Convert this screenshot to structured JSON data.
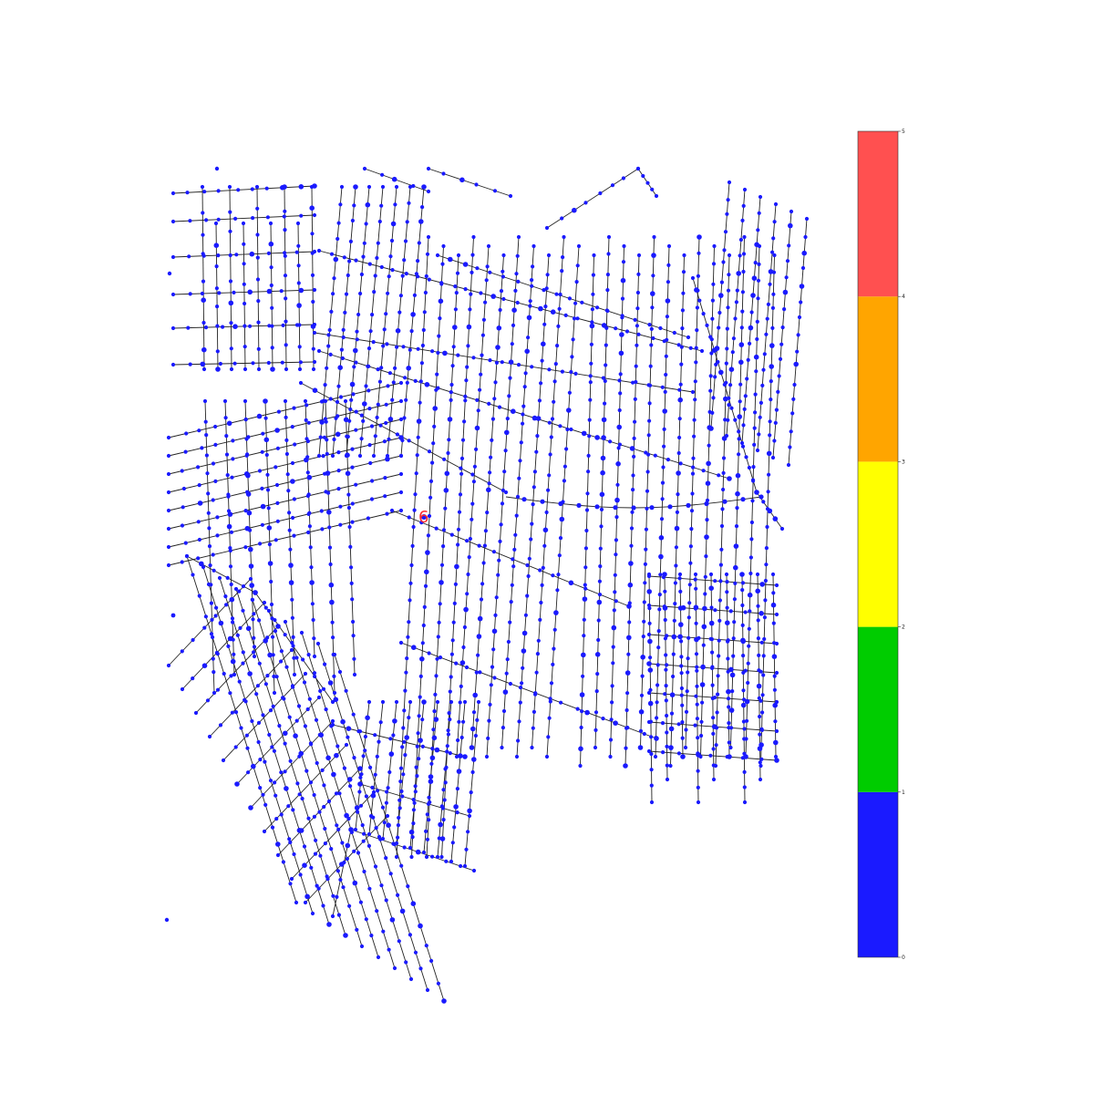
{
  "map": {
    "edge_color": "#222222",
    "node_color": "#1a1aff",
    "highlight_color": "#ff2a2a",
    "highlight_label": "6",
    "description_layers": [
      "street-network"
    ]
  },
  "colorbar": {
    "ticks": [
      "0",
      "1",
      "2",
      "3",
      "4",
      "5"
    ],
    "bands": [
      {
        "value_from": 0,
        "value_to": 1,
        "color": "#1a1aff"
      },
      {
        "value_from": 1,
        "value_to": 2,
        "color": "#00cc00"
      },
      {
        "value_from": 2,
        "value_to": 3,
        "color": "#ffff00"
      },
      {
        "value_from": 3,
        "value_to": 4,
        "color": "#ffa500"
      },
      {
        "value_from": 4,
        "value_to": 5,
        "color": "#ff5050"
      }
    ]
  }
}
